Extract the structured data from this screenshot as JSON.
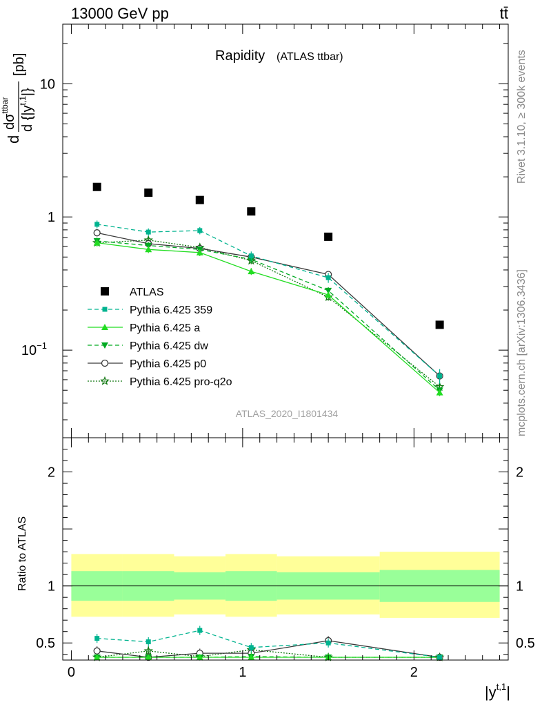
{
  "header": {
    "left": "13000 GeV pp",
    "right": "tt̄"
  },
  "side_labels": {
    "rivet": "Rivet 3.1.10, ≥ 300k events",
    "mcplots": "mcplots.cern.ch [arXiv:1306.3436]"
  },
  "chart_data": [
    {
      "type": "scatter",
      "title": "Rapidity",
      "subtitle": "(ATLAS ttbar)",
      "watermark": "ATLAS_2020_I1801434",
      "ylabel": "d dσ^{ttbar} / d {|y^{t,1}|} [pb]",
      "ylabel_parts": {
        "d": "d",
        "num": "dσ",
        "num_sup": "ttbar",
        "den": "d {|y",
        "den_sup": "t,1",
        "den_end": "|}",
        "unit": "[pb]"
      },
      "yscale": "log",
      "ylim": [
        0.022,
        28
      ],
      "xlim": [
        -0.05,
        2.55
      ],
      "yticks": [
        {
          "v": 0.1,
          "label": "10",
          "sup": "−1"
        },
        {
          "v": 1,
          "label": "1",
          "sup": ""
        },
        {
          "v": 10,
          "label": "10",
          "sup": ""
        }
      ],
      "legend_position": "left-middle",
      "x": [
        0.15,
        0.45,
        0.75,
        1.05,
        1.5,
        2.15
      ],
      "series": [
        {
          "name": "ATLAS",
          "color": "#000000",
          "marker": "square",
          "dash": "",
          "values": [
            1.68,
            1.52,
            1.34,
            1.1,
            0.71,
            0.155
          ]
        },
        {
          "name": "Pythia 6.425 359",
          "color": "#00b38f",
          "marker": "square-small",
          "dash": "6,4",
          "values": [
            0.88,
            0.77,
            0.79,
            0.51,
            0.35,
            0.064
          ]
        },
        {
          "name": "Pythia 6.425 a",
          "color": "#22dd22",
          "marker": "triangle-up",
          "dash": "",
          "values": [
            0.64,
            0.57,
            0.54,
            0.39,
            0.26,
            0.048
          ]
        },
        {
          "name": "Pythia 6.425 dw",
          "color": "#00aa22",
          "marker": "triangle-down",
          "dash": "6,4",
          "values": [
            0.66,
            0.61,
            0.57,
            0.48,
            0.28,
            0.05
          ]
        },
        {
          "name": "Pythia 6.425 p0",
          "color": "#3a3a3a",
          "marker": "circle-open",
          "dash": "",
          "values": [
            0.76,
            0.63,
            0.58,
            0.5,
            0.37,
            0.064
          ]
        },
        {
          "name": "Pythia 6.425 pro-q2o",
          "color": "#117711",
          "marker": "star",
          "dash": "2,2",
          "values": [
            0.64,
            0.67,
            0.59,
            0.47,
            0.25,
            0.053
          ]
        }
      ],
      "errors": {
        "Pythia 6.425 359": [
          0.06,
          0.05,
          0.05,
          0.04,
          0.03,
          0.008
        ]
      }
    },
    {
      "type": "scatter",
      "title": "",
      "xlabel": "|y^{t,1}|",
      "xlabel_parts": {
        "base": "|y",
        "sup": "t,1",
        "end": "|"
      },
      "ylabel": "Ratio to ATLAS",
      "ylim": [
        0.35,
        2.3
      ],
      "xlim": [
        -0.05,
        2.55
      ],
      "xticks": [
        {
          "v": 0,
          "label": "0"
        },
        {
          "v": 1,
          "label": "1"
        },
        {
          "v": 2,
          "label": "2"
        }
      ],
      "yticks": [
        {
          "v": 0.5,
          "label": "0.5"
        },
        {
          "v": 1,
          "label": "1"
        },
        {
          "v": 2,
          "label": "2"
        }
      ],
      "bands": {
        "edges": [
          0.0,
          0.3,
          0.6,
          0.9,
          1.2,
          1.8,
          2.5
        ],
        "yellow": [
          [
            0.73,
            1.28
          ],
          [
            0.73,
            1.28
          ],
          [
            0.75,
            1.26
          ],
          [
            0.73,
            1.28
          ],
          [
            0.75,
            1.26
          ],
          [
            0.72,
            1.3
          ]
        ],
        "green": [
          [
            0.87,
            1.13
          ],
          [
            0.87,
            1.13
          ],
          [
            0.88,
            1.12
          ],
          [
            0.87,
            1.13
          ],
          [
            0.88,
            1.12
          ],
          [
            0.86,
            1.14
          ]
        ]
      },
      "x": [
        0.15,
        0.45,
        0.75,
        1.05,
        1.5,
        2.15
      ],
      "series": [
        {
          "name": "Pythia 6.425 359",
          "color": "#00b38f",
          "marker": "square-small",
          "dash": "6,4",
          "values": [
            0.54,
            0.51,
            0.61,
            0.46,
            0.5,
            0.35
          ]
        },
        {
          "name": "Pythia 6.425 a",
          "color": "#22dd22",
          "marker": "triangle-up",
          "dash": "",
          "values": [
            0.33,
            0.34,
            0.33,
            0.33,
            0.34,
            0.33
          ]
        },
        {
          "name": "Pythia 6.425 dw",
          "color": "#00aa22",
          "marker": "triangle-down",
          "dash": "6,4",
          "values": [
            0.35,
            0.34,
            0.34,
            0.38,
            0.33,
            0.33
          ]
        },
        {
          "name": "Pythia 6.425 p0",
          "color": "#3a3a3a",
          "marker": "circle-open",
          "dash": "",
          "values": [
            0.43,
            0.37,
            0.41,
            0.41,
            0.52,
            0.37
          ]
        },
        {
          "name": "Pythia 6.425 pro-q2o",
          "color": "#117711",
          "marker": "star",
          "dash": "2,2",
          "values": [
            0.36,
            0.43,
            0.38,
            0.44,
            0.34,
            0.34
          ]
        }
      ]
    }
  ]
}
